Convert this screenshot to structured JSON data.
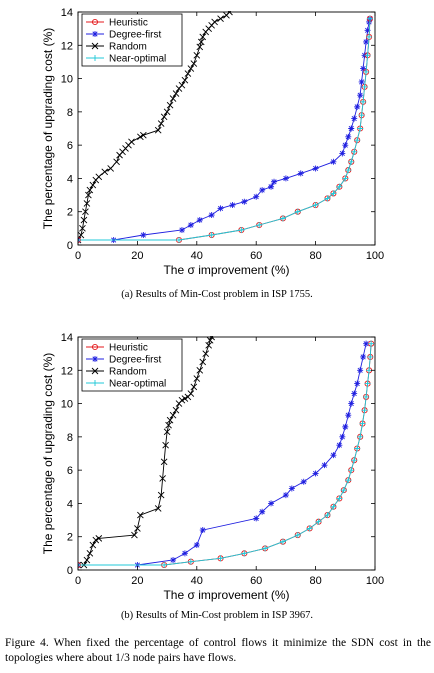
{
  "chart_data": [
    {
      "type": "line",
      "xlabel": "The σ improvement (%)",
      "ylabel": "The percentage of upgrading cost (%)",
      "xlim": [
        0,
        100
      ],
      "ylim": [
        0,
        14
      ],
      "xticks": [
        0,
        20,
        40,
        60,
        80,
        100
      ],
      "yticks": [
        0,
        2,
        4,
        6,
        8,
        10,
        12,
        14
      ],
      "legend_position": "top-left",
      "series": [
        {
          "name": "Heuristic",
          "color": "#e41a1c",
          "marker": "circle",
          "x": [
            0,
            34,
            45,
            55,
            61,
            69,
            74,
            80,
            84,
            86,
            88,
            90,
            91,
            92,
            93,
            94,
            95,
            95.5,
            96,
            96.5,
            97,
            97.5,
            98,
            98.3
          ],
          "y": [
            0.3,
            0.3,
            0.6,
            0.9,
            1.2,
            1.6,
            2.0,
            2.4,
            2.8,
            3.1,
            3.5,
            4.0,
            4.5,
            5.0,
            5.6,
            6.3,
            7.0,
            7.8,
            8.6,
            9.5,
            10.4,
            11.4,
            12.5,
            13.6
          ]
        },
        {
          "name": "Degree-first",
          "color": "#1f1fe0",
          "marker": "star",
          "x": [
            0,
            12,
            22,
            35,
            38,
            41,
            45,
            48,
            52,
            56,
            60,
            62,
            65,
            66,
            70,
            75,
            80,
            86,
            89,
            90,
            91,
            92,
            93,
            94,
            95,
            95.5,
            96,
            96.5,
            97,
            97.5,
            98,
            98.3
          ],
          "y": [
            0.3,
            0.3,
            0.6,
            0.9,
            1.2,
            1.5,
            1.8,
            2.2,
            2.4,
            2.6,
            2.9,
            3.3,
            3.5,
            3.8,
            4.0,
            4.3,
            4.6,
            5.0,
            5.5,
            6.0,
            6.5,
            7.0,
            7.6,
            8.3,
            9.0,
            9.8,
            10.6,
            11.4,
            12.2,
            12.9,
            13.4,
            13.6
          ]
        },
        {
          "name": "Random",
          "color": "#000000",
          "marker": "x",
          "x": [
            0,
            1,
            1.5,
            2,
            2.5,
            3,
            3.5,
            4,
            5,
            6,
            7,
            9,
            11,
            13,
            14,
            15,
            16,
            17,
            18,
            21,
            22,
            27,
            28,
            29,
            30,
            31,
            32,
            33,
            34,
            35,
            36,
            37,
            38,
            39,
            40,
            41,
            41.5,
            42,
            43,
            44,
            45,
            46,
            48,
            50,
            51
          ],
          "y": [
            0.3,
            0.6,
            1.0,
            1.5,
            2.0,
            2.5,
            3.0,
            3.3,
            3.6,
            3.9,
            4.1,
            4.4,
            4.6,
            5.0,
            5.4,
            5.6,
            5.8,
            6.0,
            6.2,
            6.5,
            6.6,
            6.9,
            7.3,
            7.7,
            8.0,
            8.4,
            8.8,
            9.1,
            9.4,
            9.6,
            9.9,
            10.3,
            10.6,
            10.9,
            11.4,
            11.9,
            12.2,
            12.5,
            12.8,
            13.0,
            13.2,
            13.4,
            13.6,
            13.8,
            14.0
          ]
        },
        {
          "name": "Near-optimal",
          "color": "#20c8d8",
          "marker": "plus",
          "x": [
            0,
            34,
            45,
            55,
            61,
            69,
            74,
            80,
            84,
            86,
            88,
            90,
            91,
            92,
            93,
            94,
            95,
            95.5,
            96,
            96.5,
            97,
            97.5,
            98,
            98.3
          ],
          "y": [
            0.3,
            0.3,
            0.6,
            0.9,
            1.2,
            1.6,
            2.0,
            2.4,
            2.8,
            3.1,
            3.5,
            4.0,
            4.5,
            5.0,
            5.6,
            6.3,
            7.0,
            7.8,
            8.6,
            9.5,
            10.4,
            11.4,
            12.5,
            13.6
          ]
        }
      ]
    },
    {
      "type": "line",
      "xlabel": "The σ improvement (%)",
      "ylabel": "The percentage of upgrading cost (%)",
      "xlim": [
        0,
        100
      ],
      "ylim": [
        0,
        14
      ],
      "xticks": [
        0,
        20,
        40,
        60,
        80,
        100
      ],
      "yticks": [
        0,
        2,
        4,
        6,
        8,
        10,
        12,
        14
      ],
      "legend_position": "top-left",
      "series": [
        {
          "name": "Heuristic",
          "color": "#e41a1c",
          "marker": "circle",
          "x": [
            0,
            29,
            38,
            48,
            56,
            63,
            69,
            74,
            78,
            81,
            84,
            86,
            88,
            89.5,
            91,
            92,
            93,
            94,
            95,
            95.8,
            96.5,
            97,
            97.5,
            98,
            98.4,
            98.7
          ],
          "y": [
            0.3,
            0.3,
            0.5,
            0.7,
            1.0,
            1.3,
            1.7,
            2.1,
            2.5,
            2.9,
            3.3,
            3.8,
            4.3,
            4.8,
            5.4,
            6.0,
            6.6,
            7.3,
            8.0,
            8.8,
            9.6,
            10.4,
            11.2,
            12.0,
            12.8,
            13.6
          ]
        },
        {
          "name": "Degree-first",
          "color": "#1f1fe0",
          "marker": "star",
          "x": [
            0,
            20,
            32,
            36,
            40,
            42,
            60,
            62,
            65,
            70,
            72,
            76,
            80,
            83,
            86,
            88,
            89,
            90,
            91,
            92,
            93,
            94,
            95,
            96,
            97
          ],
          "y": [
            0.3,
            0.3,
            0.6,
            1.0,
            1.5,
            2.4,
            3.1,
            3.5,
            4.0,
            4.5,
            4.9,
            5.3,
            5.8,
            6.3,
            6.9,
            7.5,
            8.0,
            8.6,
            9.3,
            10.0,
            10.6,
            11.2,
            12.0,
            12.8,
            13.6
          ]
        },
        {
          "name": "Random",
          "color": "#000000",
          "marker": "x",
          "x": [
            0,
            2,
            3,
            4,
            5,
            6,
            7,
            19,
            20,
            21,
            27,
            28,
            28.5,
            29,
            29.5,
            30,
            30.5,
            31,
            32,
            33,
            34,
            35,
            36,
            37,
            38,
            39,
            40,
            41,
            42,
            43,
            44,
            44.5,
            45
          ],
          "y": [
            0.3,
            0.3,
            0.6,
            1.0,
            1.5,
            1.8,
            1.9,
            2.1,
            2.5,
            3.3,
            3.7,
            4.5,
            5.5,
            6.5,
            7.5,
            8.3,
            8.7,
            9.0,
            9.3,
            9.6,
            10.0,
            10.2,
            10.3,
            10.4,
            10.6,
            11.0,
            11.5,
            12.0,
            12.5,
            13.0,
            13.5,
            13.8,
            14.0
          ]
        },
        {
          "name": "Near-optimal",
          "color": "#20c8d8",
          "marker": "plus",
          "x": [
            0,
            29,
            38,
            48,
            56,
            63,
            69,
            74,
            78,
            81,
            84,
            86,
            88,
            89.5,
            91,
            92,
            93,
            94,
            95,
            95.8,
            96.5,
            97,
            97.5,
            98,
            98.4,
            98.7
          ],
          "y": [
            0.3,
            0.3,
            0.5,
            0.7,
            1.0,
            1.3,
            1.7,
            2.1,
            2.5,
            2.9,
            3.3,
            3.8,
            4.3,
            4.8,
            5.4,
            6.0,
            6.6,
            7.3,
            8.0,
            8.8,
            9.6,
            10.4,
            11.2,
            12.0,
            12.8,
            13.6
          ]
        }
      ]
    }
  ],
  "subcaptions": {
    "a": "(a)  Results of Min-Cost problem in ISP 1755.",
    "b": "(b)  Results of Min-Cost problem in ISP 3967."
  },
  "figure_caption": "Figure 4.   When fixed the percentage of control flows it minimize the SDN cost in the topologies where about 1/3 node pairs have flows."
}
